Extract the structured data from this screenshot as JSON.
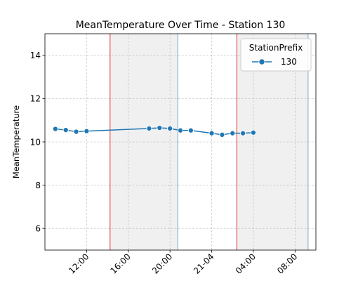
{
  "chart_data": {
    "type": "line",
    "title": "MeanTemperature Over Time - Station 130",
    "xlabel": "",
    "ylabel": "MeanTemperature",
    "ylim": [
      5,
      15
    ],
    "yticks": [
      6,
      8,
      10,
      12,
      14
    ],
    "xlim": [
      "2000-01-20T08:00",
      "2000-01-21T10:00"
    ],
    "xticks": [
      {
        "t": "2000-01-20T12:00",
        "label": "12:00"
      },
      {
        "t": "2000-01-20T16:00",
        "label": "16:00"
      },
      {
        "t": "2000-01-20T20:00",
        "label": "20:00"
      },
      {
        "t": "2000-01-21T00:00",
        "label": "21-04"
      },
      {
        "t": "2000-01-21T04:00",
        "label": "04:00"
      },
      {
        "t": "2000-01-21T08:00",
        "label": "08:00"
      }
    ],
    "grid": true,
    "legend": {
      "title": "StationPrefix",
      "placement": "top-right"
    },
    "series": [
      {
        "name": "130",
        "color": "#1f77b4",
        "points": [
          {
            "x": "2000-01-20T09:00",
            "y": 10.6
          },
          {
            "x": "2000-01-20T10:00",
            "y": 10.55
          },
          {
            "x": "2000-01-20T11:00",
            "y": 10.47
          },
          {
            "x": "2000-01-20T12:00",
            "y": 10.5
          },
          {
            "x": "2000-01-20T18:00",
            "y": 10.62
          },
          {
            "x": "2000-01-20T19:00",
            "y": 10.65
          },
          {
            "x": "2000-01-20T20:00",
            "y": 10.62
          },
          {
            "x": "2000-01-20T21:00",
            "y": 10.53
          },
          {
            "x": "2000-01-20T22:00",
            "y": 10.53
          },
          {
            "x": "2000-01-21T00:00",
            "y": 10.4
          },
          {
            "x": "2000-01-21T01:00",
            "y": 10.33
          },
          {
            "x": "2000-01-21T02:00",
            "y": 10.4
          },
          {
            "x": "2000-01-21T03:00",
            "y": 10.4
          },
          {
            "x": "2000-01-21T04:00",
            "y": 10.43
          }
        ]
      }
    ],
    "shaded_spans": [
      {
        "start": "2000-01-20T14:15",
        "end": "2000-01-20T20:45",
        "color": "#f0f0f0"
      },
      {
        "start": "2000-01-21T02:25",
        "end": "2000-01-21T09:15",
        "color": "#f0f0f0"
      }
    ],
    "vertical_lines": [
      {
        "x": "2000-01-20T14:15",
        "color": "#e8534f"
      },
      {
        "x": "2000-01-20T20:45",
        "color": "#8ab6d6"
      },
      {
        "x": "2000-01-21T02:25",
        "color": "#e8534f"
      },
      {
        "x": "2000-01-21T09:15",
        "color": "#8ab6d6"
      }
    ]
  }
}
